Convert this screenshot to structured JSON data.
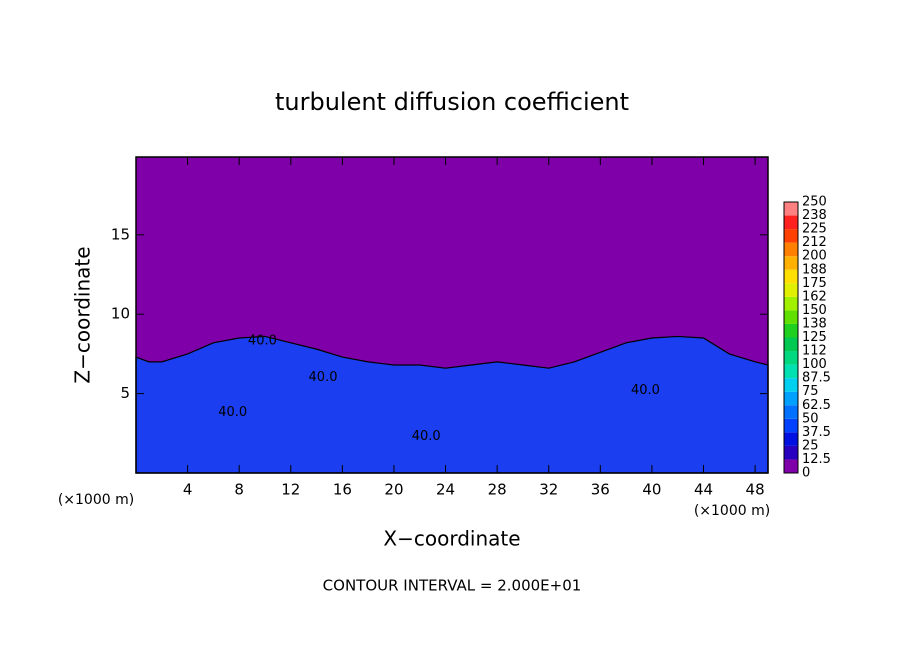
{
  "chart_data": {
    "type": "contour",
    "title": "turbulent diffusion coefficient",
    "xlabel": "X−coordinate",
    "ylabel": "Z−coordinate",
    "unit_labels": [
      "(×1000 m)",
      "(×1000 m)"
    ],
    "footnote": "CONTOUR INTERVAL = 2.000E+01",
    "xlim": [
      0,
      49
    ],
    "ylim": [
      0,
      19.9
    ],
    "xticks": [
      4,
      8,
      12,
      16,
      20,
      24,
      28,
      32,
      36,
      40,
      44,
      48
    ],
    "yticks": [
      5,
      10,
      15
    ],
    "background_color": "#7f00a8",
    "field_color": "#1a3ef0",
    "boundary": {
      "x": [
        0,
        1,
        2,
        4,
        6,
        8,
        10,
        12,
        14,
        16,
        18,
        20,
        22,
        24,
        26,
        28,
        30,
        32,
        34,
        36,
        38,
        40,
        42,
        44,
        46,
        48,
        49
      ],
      "z": [
        7.3,
        7.0,
        7.0,
        7.5,
        8.2,
        8.5,
        8.6,
        8.2,
        7.8,
        7.3,
        7.0,
        6.8,
        6.8,
        6.6,
        6.8,
        7.0,
        6.8,
        6.6,
        7.0,
        7.6,
        8.2,
        8.5,
        8.6,
        8.5,
        7.5,
        7.0,
        6.8
      ]
    },
    "contour_labels": [
      {
        "text": "40.0",
        "x": 9.8,
        "z": 8.3
      },
      {
        "text": "40.0",
        "x": 14.5,
        "z": 6.0
      },
      {
        "text": "40.0",
        "x": 7.5,
        "z": 3.8
      },
      {
        "text": "40.0",
        "x": 22.5,
        "z": 2.3
      },
      {
        "text": "40.0",
        "x": 39.5,
        "z": 5.2
      }
    ],
    "colorbar": {
      "levels": [
        0,
        12.5,
        25,
        37.5,
        50,
        62.5,
        75,
        87.5,
        100,
        112,
        125,
        138,
        150,
        162,
        175,
        188,
        200,
        212,
        225,
        238,
        250
      ],
      "colors": [
        "#7f00a8",
        "#2800c0",
        "#0010e0",
        "#0040ff",
        "#0070ff",
        "#00a0ff",
        "#00d0f0",
        "#00e0b0",
        "#00d880",
        "#00c850",
        "#20d020",
        "#60e000",
        "#a0f000",
        "#e0f000",
        "#ffe000",
        "#ffb000",
        "#ff8000",
        "#ff4000",
        "#ff2020",
        "#ff8080"
      ]
    }
  }
}
